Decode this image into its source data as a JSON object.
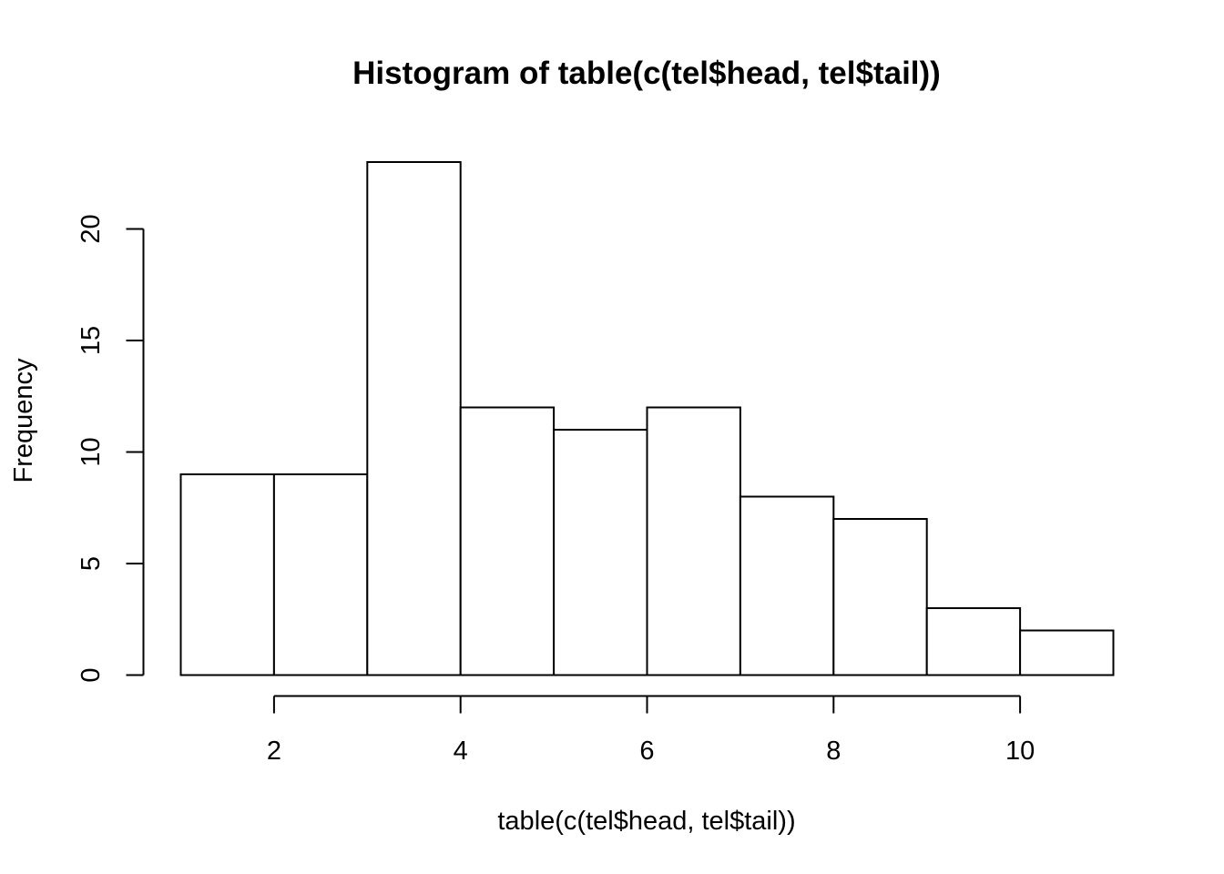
{
  "chart_data": {
    "type": "bar",
    "title": "Histogram of table(c(tel$head, tel$tail))",
    "xlabel": "table(c(tel$head, tel$tail))",
    "ylabel": "Frequency",
    "breaks": [
      1,
      2,
      3,
      4,
      5,
      6,
      7,
      8,
      9,
      10,
      11
    ],
    "values": [
      9,
      9,
      23,
      12,
      11,
      12,
      8,
      7,
      3,
      2
    ],
    "xlim": [
      1,
      11
    ],
    "ylim": [
      0,
      23
    ],
    "x_ticks": [
      2,
      4,
      6,
      8,
      10
    ],
    "y_ticks": [
      0,
      5,
      10,
      15,
      20
    ],
    "grid": false,
    "legend": "none",
    "colors": {
      "bar_fill": "#ffffff",
      "bar_stroke": "#000000"
    }
  }
}
